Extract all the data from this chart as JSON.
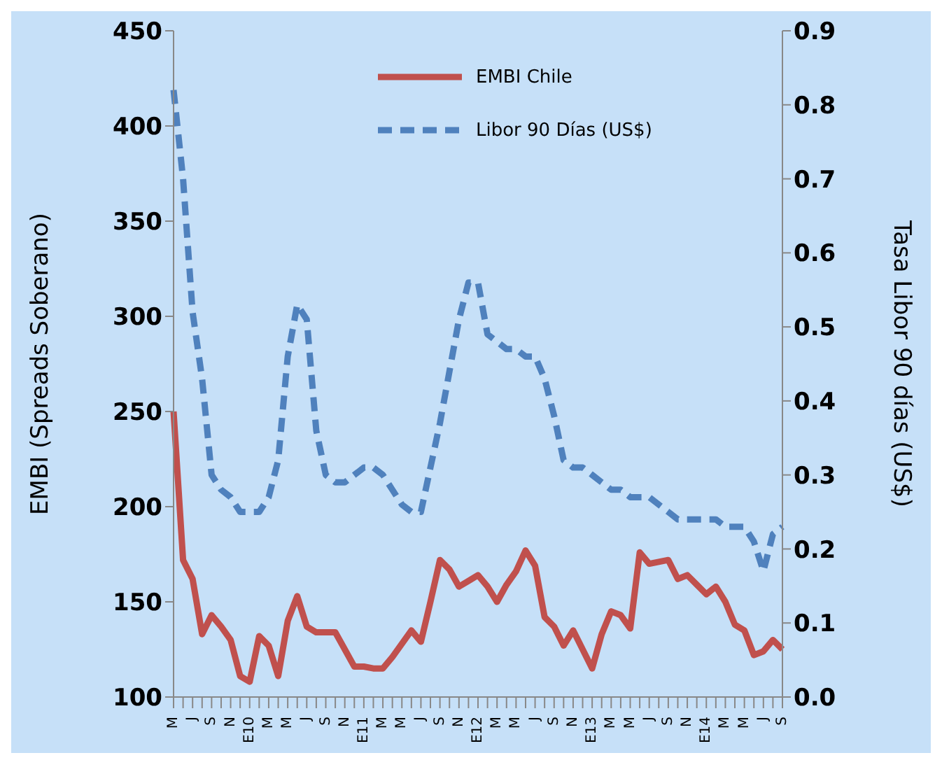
{
  "chart_data": {
    "type": "line",
    "ylabel": "EMBI (Spreads Soberano)",
    "y2label": "Tasa Libor 90 días (US$)",
    "categories": [
      "M",
      null,
      "J",
      null,
      "S",
      null,
      "N",
      null,
      "E10",
      null,
      "M",
      null,
      "M",
      null,
      "J",
      null,
      "S",
      null,
      "N",
      null,
      "E11",
      null,
      "M",
      null,
      "M",
      null,
      "J",
      null,
      "S",
      null,
      "N",
      null,
      "E12",
      null,
      "M",
      null,
      "M",
      null,
      "J",
      null,
      "S",
      null,
      "N",
      null,
      "E13",
      null,
      "M",
      null,
      "M",
      null,
      "J",
      null,
      "S",
      null,
      "N",
      null,
      "E14",
      null,
      "M",
      null,
      "M",
      null,
      "J",
      null,
      "S"
    ],
    "series": [
      {
        "name": "EMBI Chile",
        "color": "#c0504d",
        "line_style": "solid",
        "values": [
          250,
          172,
          162,
          133,
          143,
          137,
          130,
          111,
          108,
          132,
          127,
          111,
          140,
          153,
          137,
          134,
          134,
          134,
          125,
          116,
          116,
          115,
          115,
          121,
          128,
          135,
          129,
          150,
          172,
          167,
          158,
          161,
          164,
          158,
          150,
          159,
          166,
          177,
          169,
          142,
          137,
          127,
          135,
          125,
          115,
          133,
          145,
          143,
          136,
          176,
          170,
          171,
          172,
          162,
          164,
          159,
          154,
          158,
          150,
          138,
          135,
          122,
          124,
          130,
          125
        ]
      },
      {
        "name": "Libor 90 Días (US$)",
        "color": "#4f81bd",
        "line_style": "dashed",
        "axis": "y2",
        "values": [
          0.82,
          0.7,
          0.52,
          0.43,
          0.3,
          0.28,
          0.27,
          0.25,
          0.25,
          0.25,
          0.27,
          0.32,
          0.46,
          0.53,
          0.51,
          0.36,
          0.3,
          0.29,
          0.29,
          0.3,
          0.31,
          0.31,
          0.3,
          0.28,
          0.26,
          0.25,
          0.25,
          0.31,
          0.37,
          0.44,
          0.51,
          0.56,
          0.56,
          0.49,
          0.48,
          0.47,
          0.47,
          0.46,
          0.46,
          0.43,
          0.38,
          0.32,
          0.31,
          0.31,
          0.3,
          0.29,
          0.28,
          0.28,
          0.27,
          0.27,
          0.27,
          0.26,
          0.25,
          0.24,
          0.24,
          0.24,
          0.24,
          0.24,
          0.23,
          0.23,
          0.23,
          0.21,
          0.17,
          0.22,
          0.23
        ]
      }
    ],
    "ylim": [
      100,
      450
    ],
    "yticks": [
      100,
      150,
      200,
      250,
      300,
      350,
      400,
      450
    ],
    "y2lim": [
      0,
      0.9
    ],
    "y2ticks": [
      {
        "value": 0,
        "label": "0.0"
      },
      0.1,
      0.2,
      0.3,
      0.4,
      0.5,
      0.6,
      0.7,
      0.8,
      0.9
    ],
    "grid": false,
    "legend": "top",
    "marker": "none"
  }
}
